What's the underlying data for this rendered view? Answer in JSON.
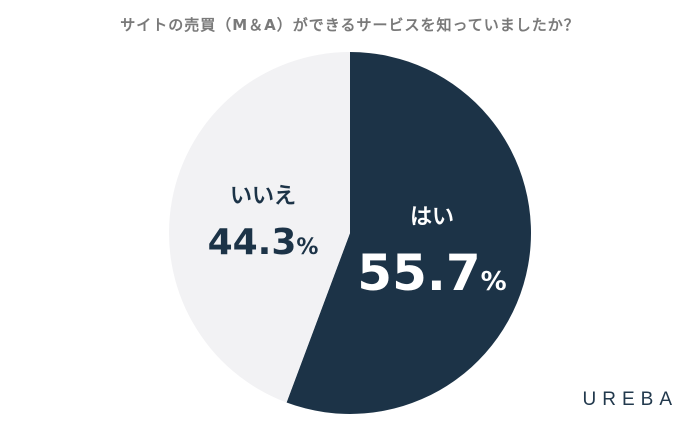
{
  "title": "サイトの売買（M＆A）ができるサービスを知っていましたか？",
  "brand": "UREBA",
  "colors": {
    "yes": "#1c3347",
    "no": "#f2f2f4",
    "title": "#7a7a7a"
  },
  "chart_data": {
    "type": "pie",
    "title": "サイトの売買（M＆A）ができるサービスを知っていましたか？",
    "slices": [
      {
        "label": "はい",
        "value": 55.7,
        "display": "55.7",
        "unit": "%",
        "color": "#1c3347"
      },
      {
        "label": "いいえ",
        "value": 44.3,
        "display": "44.3",
        "unit": "%",
        "color": "#f2f2f4"
      }
    ]
  }
}
